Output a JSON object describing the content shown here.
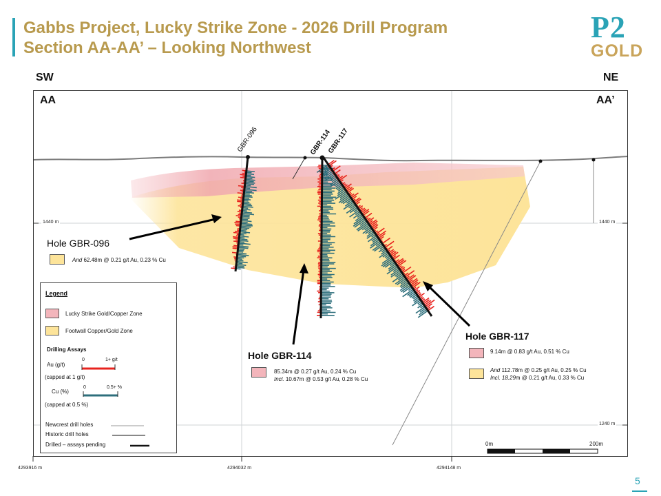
{
  "header": {
    "title_line1": "Gabbs Project, Lucky Strike Zone - 2026 Drill Program",
    "title_line2": "Section AA-AA’ – Looking Northwest",
    "logo_top": "P2",
    "logo_bottom": "GOLD"
  },
  "section": {
    "left_dir": "SW",
    "right_dir": "NE",
    "left_mark": "AA",
    "right_mark": "AA’",
    "elev_1440_left": "1440 m",
    "elev_1440_right": "1440 m",
    "elev_1240_right": "1240 m",
    "easting_1": "4293916 m",
    "easting_2": "4294032 m",
    "easting_3": "4294148 m"
  },
  "holes": {
    "gbr096_tag": "GBR-096",
    "gbr114_tag": "GBR-114",
    "gbr117_tag": "GBR-117",
    "gbr096_label": "Hole GBR-096",
    "gbr114_label": "Hole GBR-114",
    "gbr117_label": "Hole GBR-117"
  },
  "assays": {
    "gbr096_and_prefix": "And",
    "gbr096_and_text": "62.48m @  0.21 g/t Au, 0.23 % Cu",
    "gbr114_line1": "85.34m @  0.27 g/t Au, 0.24 % Cu",
    "gbr114_incl_prefix": "Incl.",
    "gbr114_incl_text": "10.67m @  0.53 g/t Au, 0.28 % Cu",
    "gbr117_line1": "9.14m @  0.83 g/t Au, 0.51 % Cu",
    "gbr117_and_prefix": "And",
    "gbr117_and_text": "112.78m @ 0.25 g/t Au, 0.25 % Cu",
    "gbr117_incl_prefix": "Incl. 18.29",
    "gbr117_incl_text": "m @  0.21 g/t Au, 0.33 % Cu"
  },
  "legend": {
    "title": "Legend",
    "zone1": "Lucky Strike Gold/Copper Zone",
    "zone2": "Footwall Copper/Gold Zone",
    "assays_title": "Drilling Assays",
    "au_label": "Au (g/t)",
    "au_cap": "(capped at 1 g/t)",
    "au_min": "0",
    "au_max": "1+ g/t",
    "cu_label": "Cu (%)",
    "cu_cap": "(capped at 0.5 %)",
    "cu_min": "0",
    "cu_max": "0.5+ %",
    "newcrest": "Newcrest drill holes",
    "historic": "Historic drill holes",
    "drilled": "Drilled – assays pending"
  },
  "scale": {
    "zero": "0m",
    "max": "200m"
  },
  "page_number": "5",
  "colors": {
    "accent_teal": "#2aa3b6",
    "title_gold": "#b89a4e",
    "zone_pink": "#f0a7ae",
    "zone_yellow": "#fde49a",
    "au_red": "#e8231e",
    "cu_teal": "#2e6f7c"
  }
}
